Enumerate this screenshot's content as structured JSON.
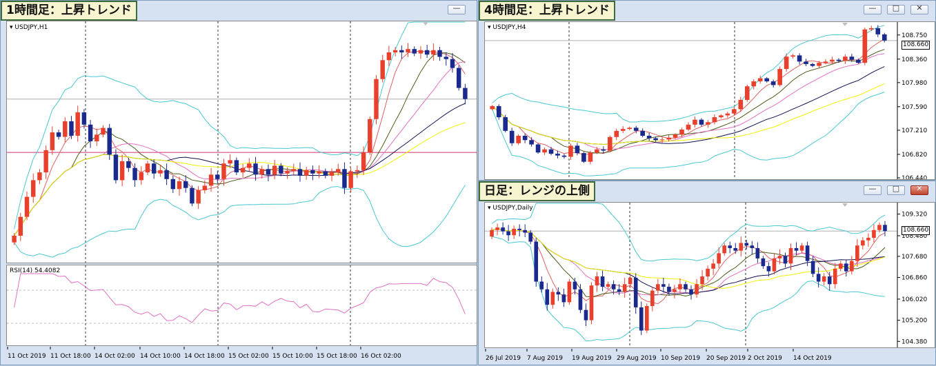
{
  "colors": {
    "bull": "#e8402c",
    "bear": "#1a2a8c",
    "bb": "#48c8d0",
    "ma_red": "#e06060",
    "ma_olive": "#4a5a18",
    "ma_pink": "#e070c0",
    "ma_navy": "#101050",
    "ma_yellow": "#f0f000",
    "hline": "#d03070",
    "badge_bg": "#f7f5cf",
    "badge_border": "#3d6b3d"
  },
  "window_buttons": {
    "minimize": "—",
    "maximize": "□",
    "close": "✕"
  },
  "windows": [
    {
      "id": "h1",
      "title": "1時間足：上昇トレンド",
      "symbol": "USDJPY,H1",
      "indicator_label": "RSI(14) 54.4082",
      "x_labels": [
        "11 Oct 2019",
        "11 Oct 18:00",
        "14 Oct 02:00",
        "14 Oct 10:00",
        "14 Oct 18:00",
        "15 Oct 02:00",
        "15 Oct 10:00",
        "15 Oct 18:00",
        "16 Oct 02:00"
      ]
    },
    {
      "id": "h4",
      "title": "4時間足：上昇トレンド",
      "symbol": "USDJPY,H4",
      "price_labels": [
        "108.750",
        "108.660",
        "108.360",
        "107.980",
        "107.590",
        "107.210",
        "106.820",
        "106.440"
      ],
      "current_price": "108.660"
    },
    {
      "id": "d1",
      "title": "日足：レンジの上側",
      "symbol": "USDJPY,Daily",
      "price_labels": [
        "109.320",
        "108.660",
        "108.480",
        "107.680",
        "106.860",
        "106.020",
        "105.200",
        "104.380"
      ],
      "current_price": "108.660",
      "x_labels": [
        "26 Jul 2019",
        "7 Aug 2019",
        "19 Aug 2019",
        "29 Aug 2019",
        "10 Sep 2019",
        "20 Sep 2019",
        "2 Oct 2019",
        "14 Oct 2019"
      ]
    }
  ],
  "chart_data": [
    {
      "type": "candlestick",
      "title": "1時間足：上昇トレンド",
      "symbol": "USDJPY,H1",
      "x_tick_labels": [
        "11 Oct 2019",
        "11 Oct 18:00",
        "14 Oct 02:00",
        "14 Oct 10:00",
        "14 Oct 18:00",
        "15 Oct 02:00",
        "15 Oct 10:00",
        "15 Oct 18:00",
        "16 Oct 02:00"
      ],
      "close": [
        107.55,
        107.72,
        107.9,
        108.05,
        108.12,
        108.32,
        108.48,
        108.44,
        108.58,
        108.45,
        108.66,
        108.55,
        108.4,
        108.46,
        108.52,
        108.28,
        108.05,
        108.22,
        108.16,
        108.05,
        108.12,
        108.2,
        108.11,
        108.14,
        108.06,
        107.97,
        108.04,
        107.98,
        107.84,
        107.96,
        108.0,
        108.1,
        108.06,
        108.2,
        108.23,
        108.12,
        108.16,
        108.2,
        108.1,
        108.15,
        108.1,
        108.18,
        108.11,
        108.13,
        108.15,
        108.09,
        108.14,
        108.11,
        108.13,
        108.09,
        108.12,
        108.15,
        107.98,
        108.13,
        108.14,
        108.3,
        108.6,
        108.96,
        109.13,
        109.2,
        109.22,
        109.2,
        109.23,
        109.19,
        109.22,
        109.18,
        109.22,
        109.16,
        109.14,
        109.06,
        108.88,
        108.78
      ],
      "series": [
        {
          "name": "RSI(14)",
          "last_value": 54.4082
        }
      ],
      "indicator": "RSI(14) 54.4082",
      "horizontal_lines": 3,
      "grid": "dashed vertical"
    },
    {
      "type": "candlestick",
      "title": "4時間足：上昇トレンド",
      "symbol": "USDJPY,H4",
      "y_tick_labels": [
        108.75,
        108.36,
        107.98,
        107.59,
        107.21,
        106.82,
        106.44
      ],
      "current_price": 108.66,
      "ylim": [
        106.44,
        108.87
      ],
      "close": [
        107.6,
        107.42,
        107.2,
        107.0,
        107.12,
        107.05,
        106.98,
        106.85,
        106.9,
        106.83,
        106.8,
        106.78,
        106.96,
        106.84,
        106.7,
        106.85,
        106.9,
        106.88,
        107.1,
        107.2,
        107.23,
        107.25,
        107.2,
        107.12,
        107.08,
        107.05,
        107.06,
        107.09,
        107.14,
        107.22,
        107.3,
        107.38,
        107.3,
        107.34,
        107.42,
        107.45,
        107.48,
        107.55,
        107.7,
        107.92,
        108.0,
        108.05,
        108.0,
        107.94,
        108.2,
        108.4,
        108.42,
        108.32,
        108.28,
        108.25,
        108.3,
        108.32,
        108.35,
        108.33,
        108.4,
        108.35,
        108.3,
        108.84,
        108.86,
        108.76,
        108.66
      ]
    },
    {
      "type": "candlestick",
      "title": "日足：レンジの上側",
      "symbol": "USDJPY,Daily",
      "x_tick_labels": [
        "26 Jul 2019",
        "7 Aug 2019",
        "19 Aug 2019",
        "29 Aug 2019",
        "10 Sep 2019",
        "20 Sep 2019",
        "2 Oct 2019",
        "14 Oct 2019"
      ],
      "y_tick_labels": [
        109.32,
        108.48,
        107.68,
        106.86,
        106.02,
        105.2,
        104.38
      ],
      "current_price": 108.66,
      "ylim": [
        104.2,
        109.55
      ],
      "close": [
        108.7,
        108.8,
        108.65,
        108.5,
        108.75,
        108.7,
        108.6,
        108.25,
        106.7,
        106.4,
        105.8,
        106.3,
        106.2,
        105.9,
        106.7,
        106.4,
        105.6,
        105.2,
        106.55,
        106.9,
        106.5,
        106.6,
        106.4,
        106.3,
        106.6,
        106.85,
        105.7,
        104.8,
        105.75,
        106.35,
        106.6,
        106.5,
        106.3,
        106.4,
        106.6,
        106.4,
        106.2,
        106.6,
        106.9,
        107.2,
        107.4,
        107.8,
        108.1,
        108.0,
        107.9,
        108.2,
        108.1,
        108.0,
        107.6,
        107.3,
        107.1,
        107.6,
        107.7,
        107.4,
        108.0,
        107.9,
        108.1,
        107.5,
        107.0,
        106.7,
        106.9,
        106.6,
        107.2,
        107.4,
        107.1,
        107.5,
        108.1,
        108.3,
        108.4,
        108.7,
        108.9,
        108.66
      ]
    }
  ]
}
